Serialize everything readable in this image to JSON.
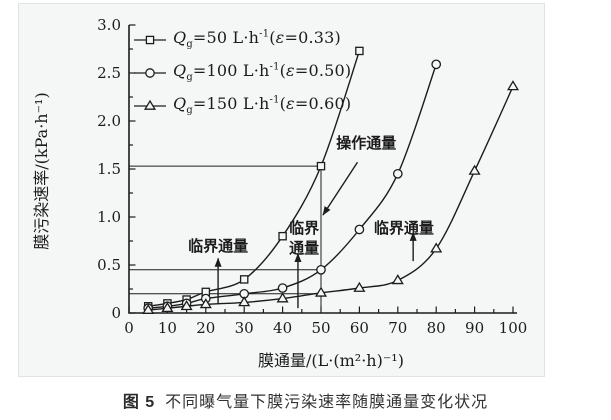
{
  "panel": {
    "background": "#f5f7f6",
    "border_color": "#dde4e2",
    "ink": "#1c1c1c"
  },
  "caption": {
    "prefix": "图 5",
    "text": "不同曝气量下膜污染速率随膜通量变化状况"
  },
  "chart_data": {
    "type": "line",
    "title": "图 5 不同曝气量下膜污染速率随膜通量变化状况",
    "xlabel": "膜通量/(L·(m²·h)⁻¹)",
    "ylabel": "膜污染速率/(kPa·h⁻¹)",
    "xlim": [
      0,
      100
    ],
    "ylim": [
      0,
      3.0
    ],
    "xticks": [
      0,
      10,
      20,
      30,
      40,
      50,
      60,
      70,
      80,
      90,
      100
    ],
    "yticks": [
      0,
      0.5,
      1.0,
      1.5,
      2.0,
      2.5,
      3.0
    ],
    "ytick_labels": [
      "0",
      "0.5",
      "1.0",
      "1.5",
      "2.0",
      "2.5",
      "3.0"
    ],
    "x_minor_step": 5,
    "y_minor_step": 0.25,
    "grid": false,
    "legend_position": "top-left",
    "series": [
      {
        "name": "Qg=50 L·h⁻¹(ε=0.33)",
        "marker": "square",
        "label_parts": [
          {
            "t": "Q",
            "s": "i"
          },
          {
            "t": "g",
            "s": "sub"
          },
          {
            "t": "=50 L·h",
            "s": ""
          },
          {
            "t": "-1",
            "s": "sup"
          },
          {
            "t": "(",
            "s": ""
          },
          {
            "t": "ε",
            "s": "i"
          },
          {
            "t": "=0.33)",
            "s": ""
          }
        ],
        "x": [
          5,
          10,
          15,
          20,
          30,
          40,
          50,
          60
        ],
        "y": [
          0.07,
          0.1,
          0.14,
          0.22,
          0.35,
          0.8,
          1.53,
          2.73
        ]
      },
      {
        "name": "Qg=100 L·h⁻¹(ε=0.50)",
        "marker": "circle",
        "label_parts": [
          {
            "t": "Q",
            "s": "i"
          },
          {
            "t": "g",
            "s": "sub"
          },
          {
            "t": "=100 L·h",
            "s": ""
          },
          {
            "t": "-1",
            "s": "sup"
          },
          {
            "t": "(",
            "s": ""
          },
          {
            "t": "ε",
            "s": "i"
          },
          {
            "t": "=0.50)",
            "s": ""
          }
        ],
        "x": [
          5,
          10,
          15,
          20,
          30,
          40,
          50,
          60,
          70,
          80
        ],
        "y": [
          0.05,
          0.07,
          0.1,
          0.15,
          0.2,
          0.26,
          0.45,
          0.87,
          1.45,
          2.59
        ]
      },
      {
        "name": "Qg=150 L·h⁻¹(ε=0.60)",
        "marker": "triangle",
        "label_parts": [
          {
            "t": "Q",
            "s": "i"
          },
          {
            "t": "g",
            "s": "sub"
          },
          {
            "t": "=150 L·h",
            "s": ""
          },
          {
            "t": "-1",
            "s": "sup"
          },
          {
            "t": "(",
            "s": ""
          },
          {
            "t": "ε",
            "s": "i"
          },
          {
            "t": "=0.60)",
            "s": ""
          }
        ],
        "x": [
          5,
          10,
          15,
          20,
          30,
          40,
          50,
          60,
          70,
          80,
          90,
          100
        ],
        "y": [
          0.03,
          0.05,
          0.07,
          0.09,
          0.11,
          0.15,
          0.21,
          0.26,
          0.34,
          0.67,
          1.48,
          2.36
        ]
      }
    ],
    "reference_lines": [
      {
        "id": "operating-flux-rate-q50",
        "type": "h",
        "y": 1.53,
        "x_from": 0,
        "x_to": 50
      },
      {
        "id": "operating-flux-rate-q100",
        "type": "h",
        "y": 0.45,
        "x_from": 0,
        "x_to": 50
      },
      {
        "id": "operating-flux-rate-q150",
        "type": "h",
        "y": 0.2,
        "x_from": 0,
        "x_to": 51
      },
      {
        "id": "operating-flux-vertical",
        "type": "v",
        "x": 50,
        "y_from": 0,
        "y_to": 1.53
      }
    ],
    "annotations": [
      {
        "id": "operating-flux",
        "text": "操作通量",
        "tx": 61.8,
        "ty": 1.77,
        "arrow": {
          "x1": 59.5,
          "y1": 1.57,
          "x2": 50.5,
          "y2": 1.02
        }
      },
      {
        "id": "critical-flux-q50",
        "text": "临界通量",
        "tx": 23.2,
        "ty": 0.7,
        "arrow": {
          "x1": 23.2,
          "y1": 0.09,
          "x2": 23.2,
          "y2": 0.57
        }
      },
      {
        "id": "critical-flux-q100",
        "text": "临界通量",
        "lines": [
          "临界",
          "通量"
        ],
        "tx": 45.6,
        "ty": 0.885,
        "arrow": {
          "x1": 44.0,
          "y1": 0.05,
          "x2": 44.0,
          "y2": 0.62
        }
      },
      {
        "id": "critical-flux-q150",
        "text": "临界通量",
        "tx": 71.6,
        "ty": 0.885,
        "arrow": {
          "x1": 74.0,
          "y1": 0.54,
          "x2": 74.0,
          "y2": 0.84
        }
      }
    ]
  }
}
